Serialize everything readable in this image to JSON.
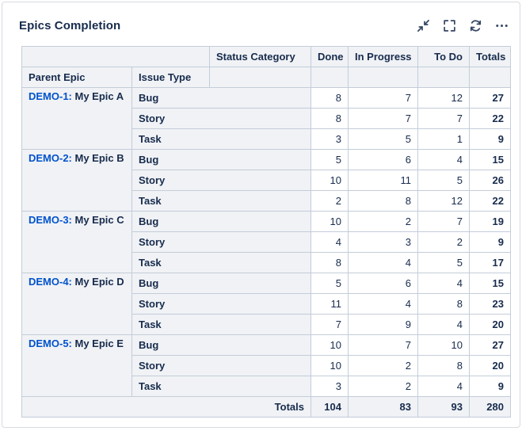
{
  "widget": {
    "title": "Epics Completion",
    "toolbar": [
      {
        "name": "collapse",
        "icon": "arrows-inward-icon"
      },
      {
        "name": "fullscreen",
        "icon": "corner-brackets-icon"
      },
      {
        "name": "refresh",
        "icon": "circular-arrows-icon"
      },
      {
        "name": "more",
        "icon": "ellipsis-icon"
      }
    ]
  },
  "table": {
    "headers": {
      "status_category": "Status Category",
      "parent_epic": "Parent Epic",
      "issue_type": "Issue Type",
      "columns": [
        "Done",
        "In Progress",
        "To Do",
        "Totals"
      ]
    },
    "groups": [
      {
        "epic_key": "DEMO-1",
        "epic_name": "My Epic A",
        "rows": [
          {
            "issue_type": "Bug",
            "values": [
              8,
              7,
              12,
              27
            ]
          },
          {
            "issue_type": "Story",
            "values": [
              8,
              7,
              7,
              22
            ]
          },
          {
            "issue_type": "Task",
            "values": [
              3,
              5,
              1,
              9
            ]
          }
        ]
      },
      {
        "epic_key": "DEMO-2",
        "epic_name": "My Epic B",
        "rows": [
          {
            "issue_type": "Bug",
            "values": [
              5,
              6,
              4,
              15
            ]
          },
          {
            "issue_type": "Story",
            "values": [
              10,
              11,
              5,
              26
            ]
          },
          {
            "issue_type": "Task",
            "values": [
              2,
              8,
              12,
              22
            ]
          }
        ]
      },
      {
        "epic_key": "DEMO-3",
        "epic_name": "My Epic C",
        "rows": [
          {
            "issue_type": "Bug",
            "values": [
              10,
              2,
              7,
              19
            ]
          },
          {
            "issue_type": "Story",
            "values": [
              4,
              3,
              2,
              9
            ]
          },
          {
            "issue_type": "Task",
            "values": [
              8,
              4,
              5,
              17
            ]
          }
        ]
      },
      {
        "epic_key": "DEMO-4",
        "epic_name": "My Epic D",
        "rows": [
          {
            "issue_type": "Bug",
            "values": [
              5,
              6,
              4,
              15
            ]
          },
          {
            "issue_type": "Story",
            "values": [
              11,
              4,
              8,
              23
            ]
          },
          {
            "issue_type": "Task",
            "values": [
              7,
              9,
              4,
              20
            ]
          }
        ]
      },
      {
        "epic_key": "DEMO-5",
        "epic_name": "My Epic E",
        "rows": [
          {
            "issue_type": "Bug",
            "values": [
              10,
              7,
              10,
              27
            ]
          },
          {
            "issue_type": "Story",
            "values": [
              10,
              2,
              8,
              20
            ]
          },
          {
            "issue_type": "Task",
            "values": [
              3,
              2,
              4,
              9
            ]
          }
        ]
      }
    ],
    "totals": {
      "label": "Totals",
      "values": [
        104,
        83,
        93,
        280
      ]
    }
  },
  "colors": {
    "title_text": "#172B4D",
    "cell_text": "#172B4D",
    "link_blue": "#0052CC",
    "header_bg": "#F0F2F5",
    "border": "#C4CDDA",
    "icon": "#344563"
  }
}
